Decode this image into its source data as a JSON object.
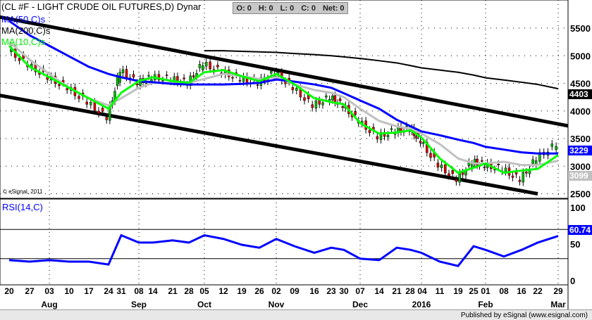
{
  "header": {
    "title": "(CL #F - LIGHT CRUDE OIL FUTURES,D) Dynar",
    "ohlc": [
      "O: 0",
      "H: 0",
      "L: 0",
      "C: 0",
      "Net: 0"
    ],
    "legend": [
      {
        "label": "MA(50,C)s",
        "color": "#0000ff"
      },
      {
        "label": "MA(200,C)s",
        "color": "#000000"
      },
      {
        "label": "MA(10,C)s",
        "color": "#00ff00"
      }
    ],
    "copyright": "© eSignal, 2011",
    "rsi_label": "RSI(14,C)"
  },
  "footer": "Published by eSignal (www.esignal.com)",
  "chart_data": {
    "type": "candlestick",
    "x_ticks": [
      "20",
      "27",
      "03",
      "10",
      "17",
      "24",
      "31",
      "08",
      "14",
      "21",
      "28",
      "05",
      "12",
      "19",
      "26",
      "02",
      "09",
      "16",
      "23",
      "30",
      "07",
      "14",
      "21",
      "28",
      "04",
      "11",
      "19",
      "25",
      "01",
      "08",
      "16",
      "22",
      "29"
    ],
    "month_labels": [
      {
        "label": "Aug",
        "tick": 2
      },
      {
        "label": "Sep",
        "tick": 7
      },
      {
        "label": "Oct",
        "tick": 11
      },
      {
        "label": "Nov",
        "tick": 15
      },
      {
        "label": "Dec",
        "tick": 20
      },
      {
        "label": "2016",
        "tick": 24
      },
      {
        "label": "Feb",
        "tick": 28
      },
      {
        "label": "Mar",
        "tick": 32
      }
    ],
    "price_axis": {
      "ticks": [
        2500,
        3000,
        3500,
        4000,
        4500,
        5000,
        5500
      ],
      "range": [
        2300,
        5800
      ]
    },
    "close": [
      5120,
      4840,
      4610,
      4420,
      4160,
      3880,
      4740,
      4510,
      4610,
      4580,
      4510,
      4860,
      4710,
      4580,
      4510,
      4700,
      4420,
      4100,
      4250,
      4100,
      3820,
      3530,
      3650,
      3680,
      3460,
      3020,
      2760,
      3080,
      3020,
      2950,
      2760,
      3140,
      3400
    ],
    "ma50": [
      5630,
      5370,
      5180,
      4990,
      4800,
      4670,
      4610,
      4540,
      4520,
      4490,
      4480,
      4480,
      4480,
      4490,
      4510,
      4570,
      4530,
      4480,
      4420,
      4320,
      4190,
      4040,
      3840,
      3720,
      3630,
      3560,
      3480,
      3420,
      3350,
      3300,
      3250,
      3230,
      3229
    ],
    "ma_gray": [
      5250,
      4930,
      4670,
      4420,
      4230,
      4100,
      4230,
      4420,
      4510,
      4510,
      4510,
      4580,
      4670,
      4630,
      4580,
      4610,
      4480,
      4380,
      4330,
      4250,
      4040,
      3820,
      3720,
      3680,
      3590,
      3400,
      3140,
      3050,
      3050,
      3080,
      3020,
      3020,
      3099
    ],
    "ma10": [
      5180,
      4800,
      4610,
      4420,
      4230,
      4040,
      4330,
      4540,
      4610,
      4540,
      4510,
      4700,
      4740,
      4630,
      4540,
      4670,
      4480,
      4230,
      4160,
      4120,
      3780,
      3590,
      3610,
      3650,
      3520,
      3140,
      2880,
      2970,
      3050,
      2880,
      2920,
      2950,
      3200
    ],
    "ma200": [
      null,
      null,
      null,
      null,
      null,
      null,
      null,
      null,
      null,
      null,
      null,
      5090,
      5090,
      5080,
      5070,
      5060,
      5040,
      5020,
      5000,
      4980,
      4950,
      4910,
      4870,
      4820,
      4780,
      4740,
      4700,
      4650,
      4600,
      4560,
      4520,
      4480,
      4403
    ],
    "trendlines": [
      {
        "from": [
          0,
          5700
        ],
        "to": [
          32.5,
          3730
        ]
      },
      {
        "from": [
          0,
          4280
        ],
        "to": [
          31,
          2500
        ]
      }
    ],
    "last_values": {
      "ma200": "4403",
      "ma50": "3229",
      "ma_gray": "3099",
      "rsi": "60.74"
    },
    "rsi": {
      "ticks": [
        0,
        50,
        100
      ],
      "levels": [
        30,
        70
      ],
      "values": [
        28,
        26,
        28,
        26,
        26,
        22,
        62,
        52,
        52,
        55,
        52,
        62,
        57,
        49,
        45,
        57,
        47,
        38,
        45,
        42,
        30,
        28,
        45,
        42,
        38,
        26,
        20,
        47,
        42,
        33,
        42,
        52,
        61
      ]
    },
    "colors": {
      "up": "#00c000",
      "down": "#e00000",
      "ma50": "#0000ff",
      "ma10": "#00ff00",
      "ma_gray": "#c0c0c0",
      "ma200": "#000000",
      "rsi": "#0000ff"
    }
  }
}
